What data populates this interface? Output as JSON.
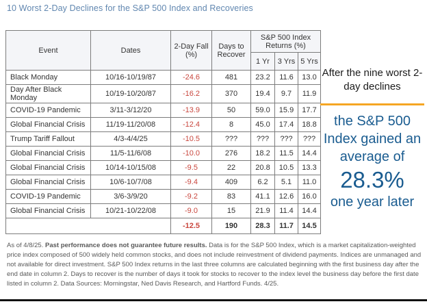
{
  "title": "10 Worst 2-Day Declines for the S&P 500 Index and Recoveries",
  "colors": {
    "title_blue": "#6187b0",
    "callout_blue": "#1a5c90",
    "accent_orange": "#f5a623",
    "negative_red": "#c9463d",
    "border_gray": "#7b7b7b",
    "header_bg": "#f4f5f8",
    "footnote_gray": "#595959",
    "text_dark": "#333333"
  },
  "table_headers": {
    "event": "Event",
    "dates": "Dates",
    "fall": "2-Day Fall (%)",
    "recover": "Days to Recover",
    "returns_group": "S&P 500 Index Returns (%)",
    "yr1": "1 Yr",
    "yr3": "3 Yrs",
    "yr5": "5 Yrs"
  },
  "chart_data": {
    "type": "table",
    "title": "10 Worst 2-Day Declines for the S&P 500 Index and Recoveries",
    "columns": [
      "Event",
      "Dates",
      "2-Day Fall (%)",
      "Days to Recover",
      "1 Yr",
      "3 Yrs",
      "5 Yrs"
    ],
    "returns_group_label": "S&P 500 Index Returns (%)",
    "rows": [
      [
        "Black Monday",
        "10/16-10/19/87",
        "-24.6",
        "481",
        "23.2",
        "11.6",
        "13.0"
      ],
      [
        "Day After Black Monday",
        "10/19-10/20/87",
        "-16.2",
        "370",
        "19.4",
        "9.7",
        "11.9"
      ],
      [
        "COVID-19 Pandemic",
        "3/11-3/12/20",
        "-13.9",
        "50",
        "59.0",
        "15.9",
        "17.7"
      ],
      [
        "Global Financial Crisis",
        "11/19-11/20/08",
        "-12.4",
        "8",
        "45.0",
        "17.4",
        "18.8"
      ],
      [
        "Trump Tariff Fallout",
        "4/3-4/4/25",
        "-10.5",
        "???",
        "???",
        "???",
        "???"
      ],
      [
        "Global Financial Crisis",
        "11/5-11/6/08",
        "-10.0",
        "276",
        "18.2",
        "11.5",
        "14.4"
      ],
      [
        "Global Financial Crisis",
        "10/14-10/15/08",
        "-9.5",
        "22",
        "20.8",
        "10.5",
        "13.3"
      ],
      [
        "Global Financial Crisis",
        "10/6-10/7/08",
        "-9.4",
        "409",
        "6.2",
        "5.1",
        "11.0"
      ],
      [
        "COVID-19 Pandemic",
        "3/6-3/9/20",
        "-9.2",
        "83",
        "41.1",
        "12.6",
        "16.0"
      ],
      [
        "Global Financial Crisis",
        "10/21-10/22/08",
        "-9.0",
        "15",
        "21.9",
        "11.4",
        "14.4"
      ]
    ],
    "average_row": [
      "-12.5",
      "190",
      "28.3",
      "11.7",
      "14.5"
    ]
  },
  "callout": {
    "intro": "After the nine worst 2-day declines",
    "gain_line": "the S&P 500 Index gained an average of",
    "big_value": "28.3%",
    "tail": "one year later"
  },
  "footnote": {
    "as_of": "As of 4/8/25.",
    "bold": "Past performance does not guarantee future results.",
    "body": "Data is for the S&P 500 Index, which is a market capitalization-weighted price index composed of 500 widely held common stocks, and does not include reinvestment of dividend payments. Indices are unmanaged and not available for direct investment. S&P 500 Index returns in the last three columns are calculated beginning with the first business day after the end date in column 2. Days to recover is the number of days it took for stocks to recover to the index level the business day before the first date listed in column 2. Data Sources: Morningstar, Ned Davis Research, and Hartford Funds. 4/25."
  }
}
